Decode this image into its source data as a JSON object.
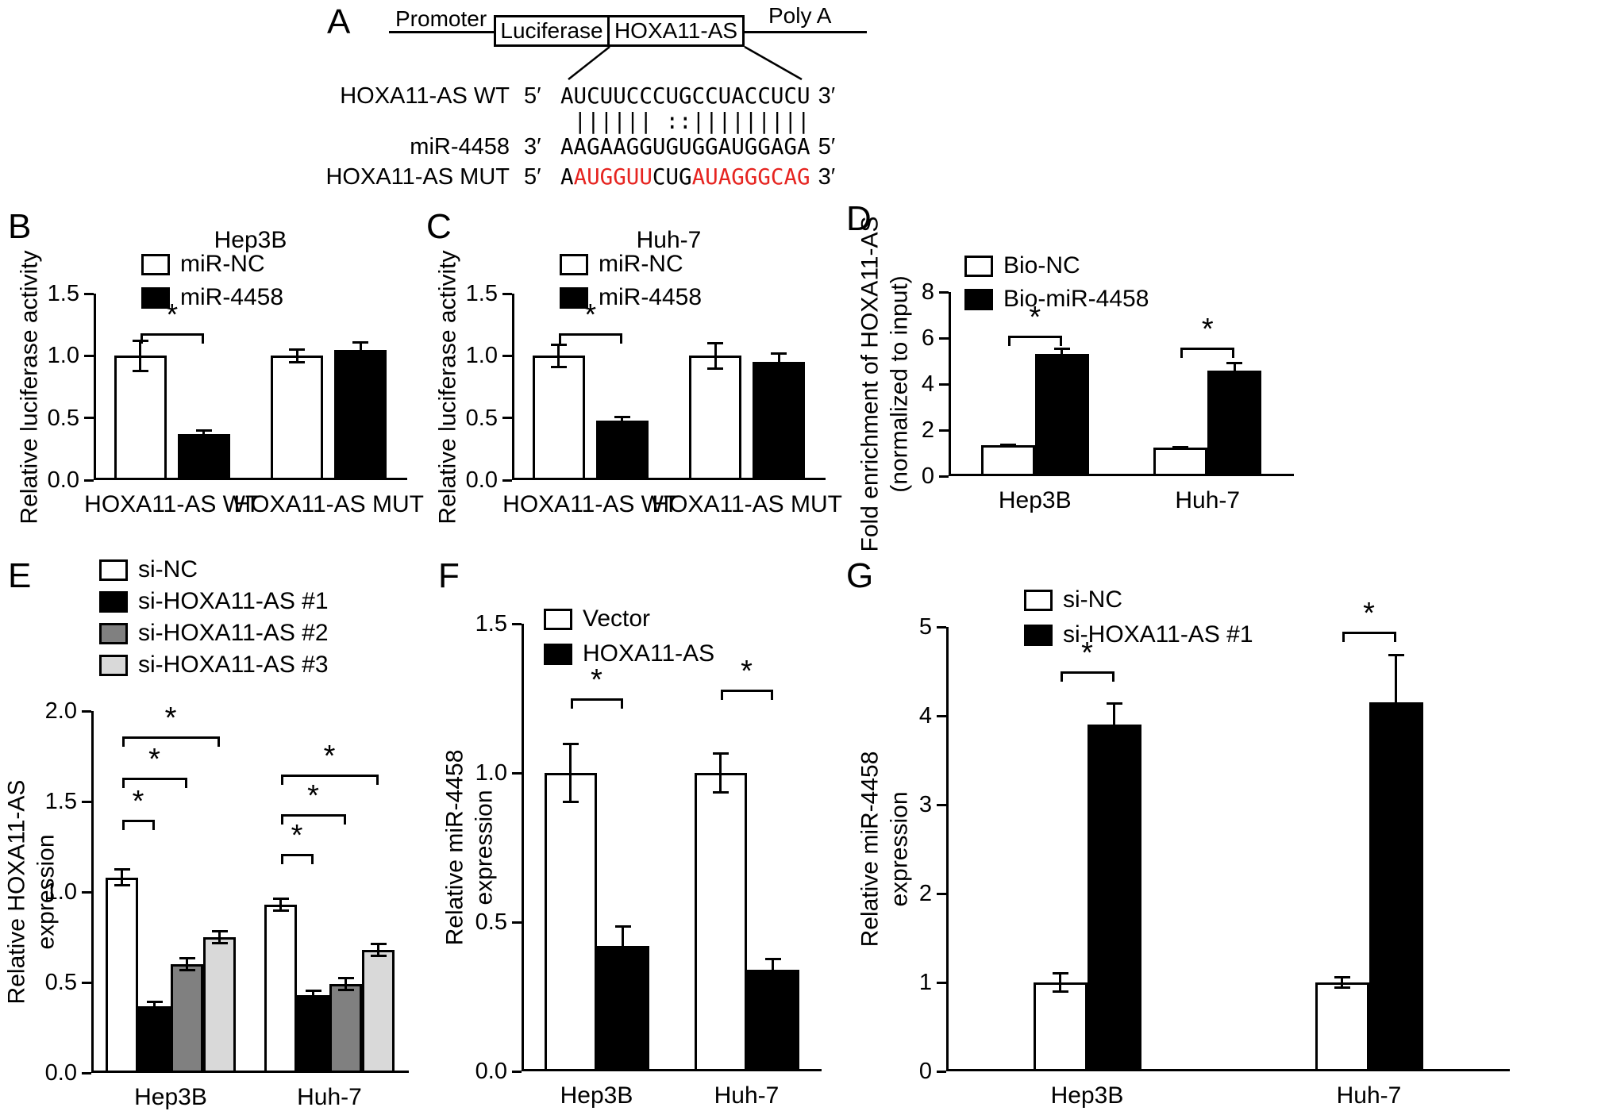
{
  "panel_a": {
    "label": "A",
    "construct": {
      "promoter_label": "Promoter",
      "luciferase_label": "Luciferase",
      "insert_label": "HOXA11-AS",
      "polya_label": "Poly A"
    },
    "alignment": {
      "wt": {
        "label": "HOXA11-AS WT",
        "left_end": "5′",
        "seq": "AUCUUCCCUGCCUACCUCU",
        "right_end": "3′"
      },
      "pairing": " |||||| ::|||||||||",
      "mir": {
        "label": "miR-4458",
        "left_end": "3′",
        "seq": "AAGAAGGUGUGGAUGGAGA",
        "right_end": "5′"
      },
      "mut": {
        "label": "HOXA11-AS MUT",
        "left_end": "5′",
        "seg1": "A",
        "seg2": "AUGGUU",
        "seg3": "CUG",
        "seg4": "AUAGGGCAG",
        "right_end": "3′"
      }
    }
  },
  "colors": {
    "mutation_red": "#e62420",
    "bar_white": "#ffffff",
    "bar_black": "#000000",
    "bar_gray": "#808080",
    "bar_light_gray": "#d9d9d9"
  },
  "chart_data": [
    {
      "panel": "B",
      "type": "bar",
      "title": "Hep3B",
      "ylabel": [
        "Relative luciferase activity"
      ],
      "ylim": [
        0,
        1.5
      ],
      "yticks": [
        "0.0",
        "0.5",
        "1.0",
        "1.5"
      ],
      "categories": [
        "HOXA11-AS WT",
        "HOXA11-AS MUT"
      ],
      "series": [
        {
          "name": "miR-NC",
          "fill": "#ffffff"
        },
        {
          "name": "miR-4458",
          "fill": "#000000"
        }
      ],
      "values": [
        [
          1.0,
          1.0
        ],
        [
          0.37,
          1.05
        ]
      ],
      "errors": [
        [
          0.13,
          0.06
        ],
        [
          0.04,
          0.07
        ]
      ],
      "sig": [
        {
          "cat": 0,
          "a": 0,
          "b": 1,
          "y": 1.18,
          "label": "*"
        }
      ],
      "legend_pos": "upper-left"
    },
    {
      "panel": "C",
      "type": "bar",
      "title": "Huh-7",
      "ylabel": [
        "Relative luciferase activity"
      ],
      "ylim": [
        0,
        1.5
      ],
      "yticks": [
        "0.0",
        "0.5",
        "1.0",
        "1.5"
      ],
      "categories": [
        "HOXA11-AS WT",
        "HOXA11-AS MUT"
      ],
      "series": [
        {
          "name": "miR-NC",
          "fill": "#ffffff"
        },
        {
          "name": "miR-4458",
          "fill": "#000000"
        }
      ],
      "values": [
        [
          1.0,
          1.0
        ],
        [
          0.48,
          0.95
        ]
      ],
      "errors": [
        [
          0.1,
          0.11
        ],
        [
          0.04,
          0.08
        ]
      ],
      "sig": [
        {
          "cat": 0,
          "a": 0,
          "b": 1,
          "y": 1.18,
          "label": "*"
        }
      ],
      "legend_pos": "upper-left"
    },
    {
      "panel": "D",
      "type": "bar",
      "title": "",
      "ylabel": [
        "Fold enrichment of HOXA11-AS",
        "(normalized to input)"
      ],
      "ylim": [
        0,
        8
      ],
      "yticks": [
        "0",
        "2",
        "4",
        "6",
        "8"
      ],
      "categories": [
        "Hep3B",
        "Huh-7"
      ],
      "series": [
        {
          "name": "Bio-NC",
          "fill": "#ffffff"
        },
        {
          "name": "Bio-miR-4458",
          "fill": "#000000"
        }
      ],
      "values": [
        [
          1.35,
          1.25
        ],
        [
          5.3,
          4.6
        ]
      ],
      "errors": [
        [
          0.08,
          0.06
        ],
        [
          0.3,
          0.35
        ]
      ],
      "sig": [
        {
          "cat": 0,
          "a": 0,
          "b": 1,
          "y": 6.1,
          "label": "*"
        },
        {
          "cat": 1,
          "a": 0,
          "b": 1,
          "y": 5.6,
          "label": "*"
        }
      ],
      "legend_pos": "upper-left"
    },
    {
      "panel": "E",
      "type": "bar",
      "title": "",
      "ylabel": [
        "Relative HOXA11-AS",
        "expression"
      ],
      "ylim": [
        0,
        2
      ],
      "yticks": [
        "0.0",
        "0.5",
        "1.0",
        "1.5",
        "2.0"
      ],
      "categories": [
        "Hep3B",
        "Huh-7"
      ],
      "series": [
        {
          "name": "si-NC",
          "fill": "#ffffff"
        },
        {
          "name": "si-HOXA11-AS #1",
          "fill": "#000000"
        },
        {
          "name": "si-HOXA11-AS #2",
          "fill": "#808080"
        },
        {
          "name": "si-HOXA11-AS #3",
          "fill": "#d9d9d9"
        }
      ],
      "values": [
        [
          1.08,
          0.93
        ],
        [
          0.37,
          0.43
        ],
        [
          0.6,
          0.49
        ],
        [
          0.75,
          0.68
        ]
      ],
      "errors": [
        [
          0.05,
          0.04
        ],
        [
          0.03,
          0.03
        ],
        [
          0.04,
          0.04
        ],
        [
          0.04,
          0.04
        ]
      ],
      "sig": [
        {
          "cat": 0,
          "a": 0,
          "b": 1,
          "y": 1.4,
          "label": "*"
        },
        {
          "cat": 0,
          "a": 0,
          "b": 2,
          "y": 1.63,
          "label": "*"
        },
        {
          "cat": 0,
          "a": 0,
          "b": 3,
          "y": 1.86,
          "label": "*"
        },
        {
          "cat": 1,
          "a": 0,
          "b": 1,
          "y": 1.21,
          "label": "*"
        },
        {
          "cat": 1,
          "a": 0,
          "b": 2,
          "y": 1.43,
          "label": "*"
        },
        {
          "cat": 1,
          "a": 0,
          "b": 3,
          "y": 1.65,
          "label": "*"
        }
      ],
      "legend_pos": "above-left"
    },
    {
      "panel": "F",
      "type": "bar",
      "title": "",
      "ylabel": [
        "Relative miR-4458",
        "expression"
      ],
      "ylim": [
        0,
        1.5
      ],
      "yticks": [
        "0.0",
        "0.5",
        "1.0",
        "1.5"
      ],
      "categories": [
        "Hep3B",
        "Huh-7"
      ],
      "series": [
        {
          "name": "Vector",
          "fill": "#ffffff"
        },
        {
          "name": "HOXA11-AS",
          "fill": "#000000"
        }
      ],
      "values": [
        [
          1.0,
          1.0
        ],
        [
          0.42,
          0.34
        ]
      ],
      "errors": [
        [
          0.1,
          0.07
        ],
        [
          0.07,
          0.04
        ]
      ],
      "sig": [
        {
          "cat": 0,
          "a": 0,
          "b": 1,
          "y": 1.25,
          "label": "*"
        },
        {
          "cat": 1,
          "a": 0,
          "b": 1,
          "y": 1.28,
          "label": "*"
        }
      ],
      "legend_pos": "upper-left"
    },
    {
      "panel": "G",
      "type": "bar",
      "title": "",
      "ylabel": [
        "Relative miR-4458",
        "expression"
      ],
      "ylim": [
        0,
        5
      ],
      "yticks": [
        "0",
        "1",
        "2",
        "3",
        "4",
        "5"
      ],
      "categories": [
        "Hep3B",
        "Huh-7"
      ],
      "series": [
        {
          "name": "si-NC",
          "fill": "#ffffff"
        },
        {
          "name": "si-HOXA11-AS #1",
          "fill": "#000000"
        }
      ],
      "values": [
        [
          1.0,
          1.0
        ],
        [
          3.9,
          4.15
        ]
      ],
      "errors": [
        [
          0.12,
          0.07
        ],
        [
          0.25,
          0.55
        ]
      ],
      "sig": [
        {
          "cat": 0,
          "a": 0,
          "b": 1,
          "y": 4.5,
          "label": "*"
        },
        {
          "cat": 1,
          "a": 0,
          "b": 1,
          "y": 4.95,
          "label": "*"
        }
      ],
      "legend_pos": "upper-left"
    }
  ]
}
